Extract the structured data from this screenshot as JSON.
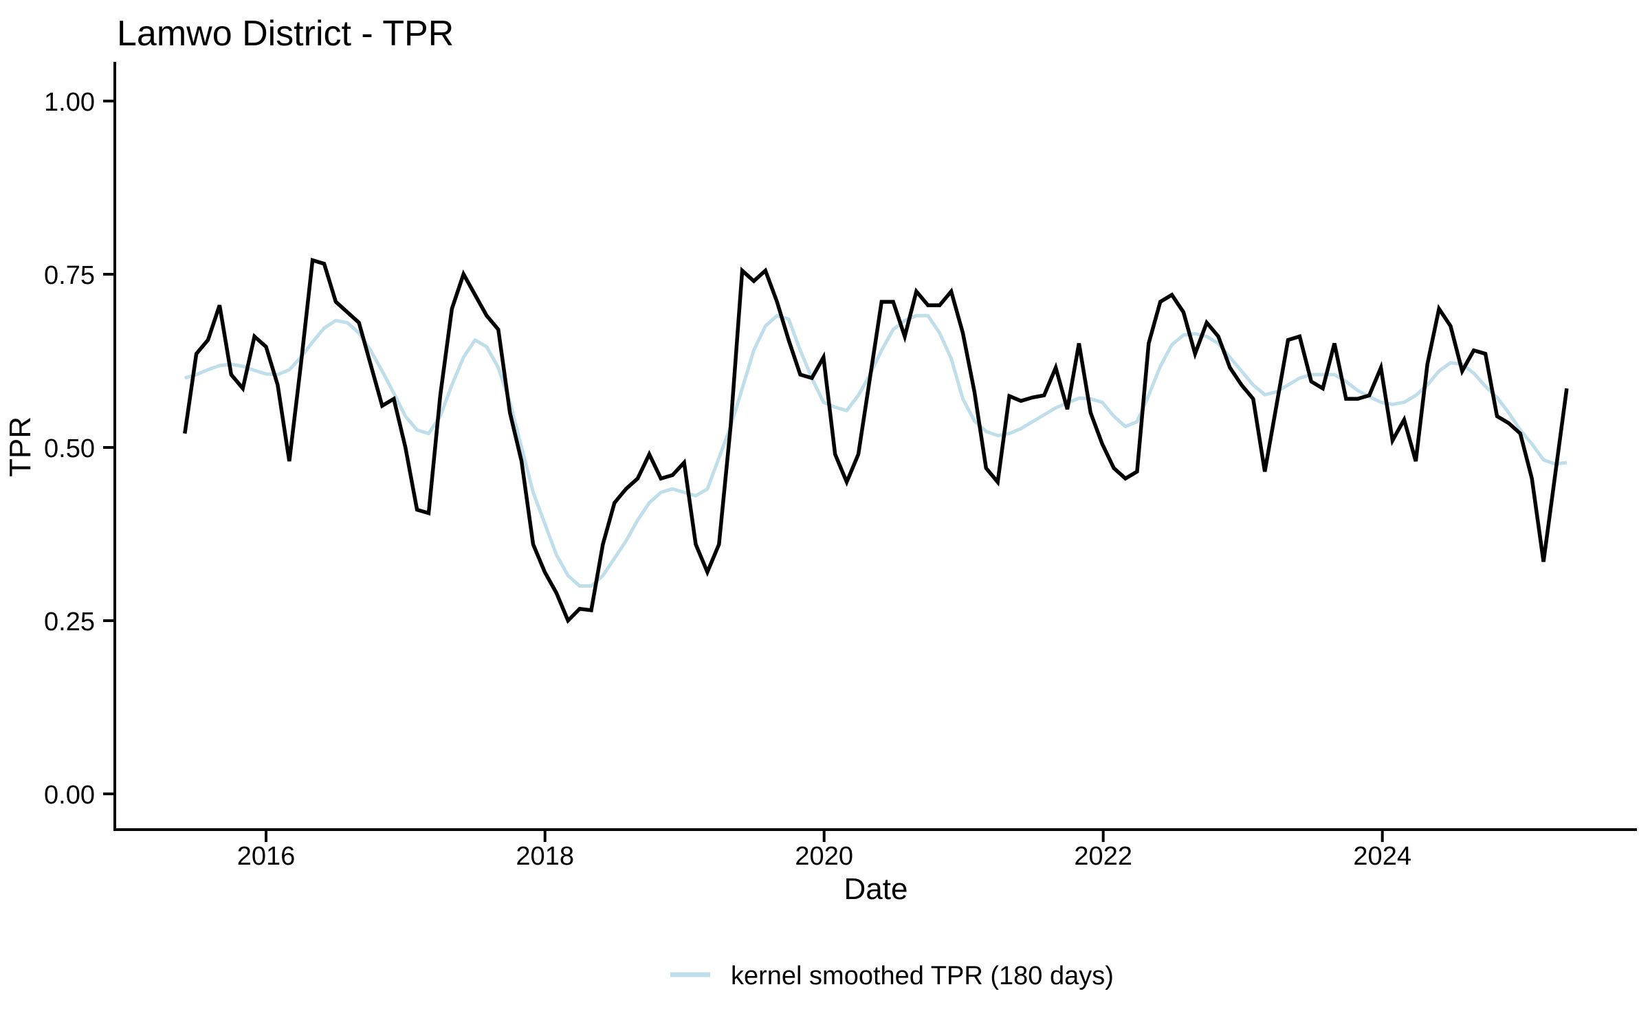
{
  "title": "Lamwo District - TPR",
  "y_axis": {
    "label": "TPR",
    "ticks": [
      "1.00",
      "0.75",
      "0.50",
      "0.25",
      "0.00"
    ],
    "tick_values": [
      1.0,
      0.75,
      0.5,
      0.25,
      0.0
    ]
  },
  "x_axis": {
    "label": "Date",
    "ticks": [
      "2016",
      "2018",
      "2020",
      "2022",
      "2024"
    ],
    "tick_values": [
      2016,
      2018,
      2020,
      2022,
      2024
    ]
  },
  "legend": {
    "label": "kernel smoothed TPR (180 days)",
    "position": "bottom"
  },
  "colors": {
    "raw_line": "#000000",
    "smoothed_line": "#BFDEEA",
    "background": "#ffffff",
    "axis": "#000000"
  },
  "chart_data": {
    "type": "line",
    "title": "Lamwo District - TPR",
    "xlabel": "Date",
    "ylabel": "TPR",
    "ylim": [
      0,
      1
    ],
    "xlim_years": [
      2015.35,
      2025.45
    ],
    "grid": false,
    "legend_position": "bottom",
    "frequency": "monthly",
    "start_month": "2015-06",
    "end_month": "2025-05",
    "series": [
      {
        "name": "TPR",
        "color": "#000000",
        "values": [
          0.52,
          0.635,
          0.655,
          0.705,
          0.605,
          0.585,
          0.66,
          0.645,
          0.59,
          0.48,
          0.62,
          0.77,
          0.765,
          0.71,
          0.695,
          0.68,
          0.62,
          0.56,
          0.57,
          0.5,
          0.41,
          0.405,
          0.575,
          0.7,
          0.75,
          0.72,
          0.69,
          0.67,
          0.55,
          0.48,
          0.36,
          0.32,
          0.29,
          0.25,
          0.267,
          0.265,
          0.36,
          0.42,
          0.44,
          0.455,
          0.49,
          0.455,
          0.46,
          0.478,
          0.36,
          0.32,
          0.36,
          0.53,
          0.755,
          0.74,
          0.755,
          0.71,
          0.655,
          0.605,
          0.6,
          0.63,
          0.49,
          0.45,
          0.49,
          0.6,
          0.71,
          0.71,
          0.66,
          0.725,
          0.705,
          0.705,
          0.725,
          0.665,
          0.58,
          0.47,
          0.45,
          0.574,
          0.567,
          0.572,
          0.575,
          0.615,
          0.555,
          0.65,
          0.55,
          0.505,
          0.47,
          0.455,
          0.465,
          0.65,
          0.71,
          0.72,
          0.695,
          0.635,
          0.68,
          0.66,
          0.615,
          0.59,
          0.57,
          0.465,
          0.56,
          0.655,
          0.66,
          0.595,
          0.585,
          0.65,
          0.57,
          0.57,
          0.575,
          0.615,
          0.51,
          0.54,
          0.48,
          0.62,
          0.7,
          0.675,
          0.61,
          0.64,
          0.635,
          0.545,
          0.535,
          0.52,
          0.455,
          0.335,
          0.46,
          0.585
        ]
      },
      {
        "name": "kernel smoothed TPR (180 days)",
        "color": "#BFDEEA",
        "values": [
          0.6,
          0.605,
          0.612,
          0.618,
          0.62,
          0.617,
          0.611,
          0.606,
          0.605,
          0.612,
          0.63,
          0.652,
          0.672,
          0.683,
          0.68,
          0.665,
          0.64,
          0.61,
          0.578,
          0.545,
          0.525,
          0.52,
          0.545,
          0.59,
          0.63,
          0.655,
          0.645,
          0.615,
          0.565,
          0.5,
          0.435,
          0.39,
          0.345,
          0.315,
          0.3,
          0.3,
          0.315,
          0.34,
          0.365,
          0.395,
          0.42,
          0.435,
          0.44,
          0.435,
          0.43,
          0.44,
          0.485,
          0.53,
          0.585,
          0.64,
          0.675,
          0.69,
          0.685,
          0.64,
          0.6,
          0.565,
          0.558,
          0.553,
          0.575,
          0.605,
          0.64,
          0.67,
          0.683,
          0.69,
          0.69,
          0.665,
          0.628,
          0.57,
          0.538,
          0.523,
          0.517,
          0.52,
          0.527,
          0.537,
          0.547,
          0.557,
          0.564,
          0.571,
          0.57,
          0.565,
          0.545,
          0.53,
          0.537,
          0.575,
          0.617,
          0.648,
          0.662,
          0.664,
          0.66,
          0.65,
          0.63,
          0.61,
          0.59,
          0.576,
          0.58,
          0.59,
          0.6,
          0.605,
          0.605,
          0.605,
          0.595,
          0.582,
          0.573,
          0.565,
          0.562,
          0.565,
          0.575,
          0.59,
          0.61,
          0.622,
          0.62,
          0.607,
          0.588,
          0.572,
          0.55,
          0.525,
          0.505,
          0.482,
          0.476,
          0.478
        ]
      }
    ]
  }
}
